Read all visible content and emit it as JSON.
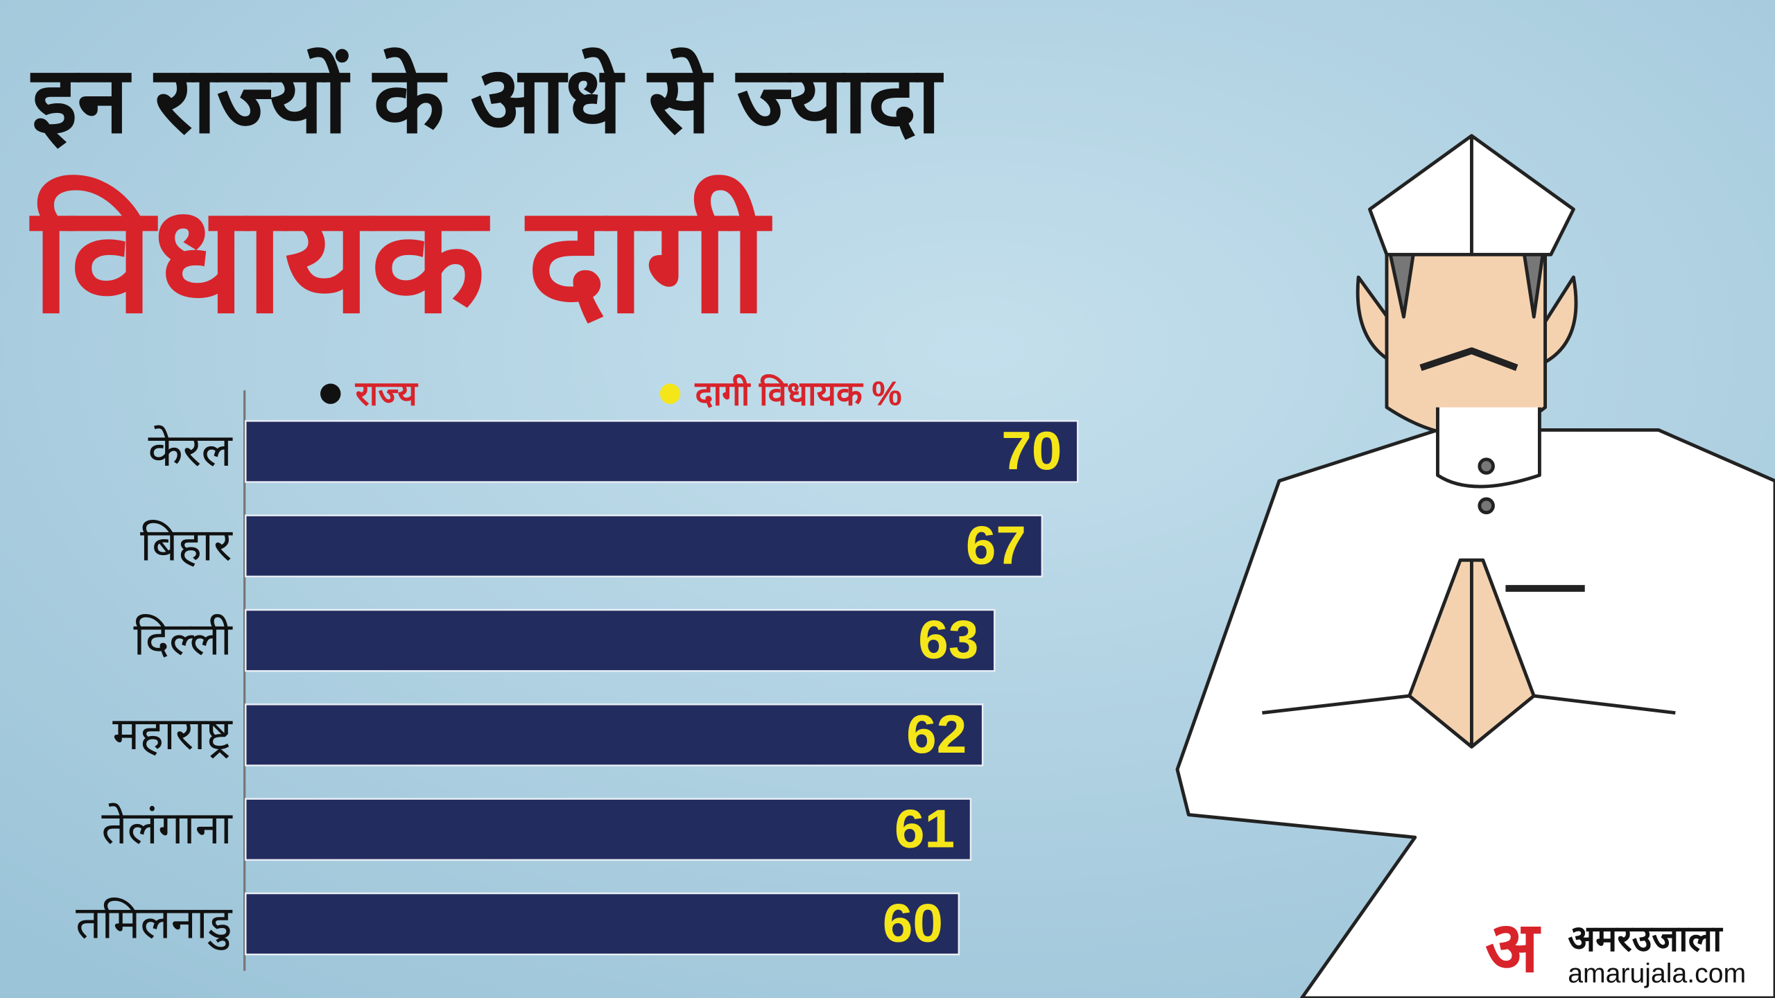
{
  "chart_data": {
    "type": "bar",
    "title": "इन राज्यों के आधे से ज्यादा",
    "subtitle": "विधायक दागी",
    "legend": [
      {
        "label": "राज्य",
        "color": "#111111"
      },
      {
        "label": "दागी विधायक %",
        "color": "#f5e61a"
      }
    ],
    "categories": [
      "केरल",
      "बिहार",
      "दिल्ली",
      "महाराष्ट्र",
      "तेलंगाना",
      "तमिलनाडु"
    ],
    "values": [
      70,
      67,
      63,
      62,
      61,
      60
    ],
    "color": "#232c5e",
    "value_label_color": "#f5e61a"
  },
  "logo": {
    "mark": "अ",
    "name": "अमरउजाला",
    "site": "amarujala.com"
  }
}
